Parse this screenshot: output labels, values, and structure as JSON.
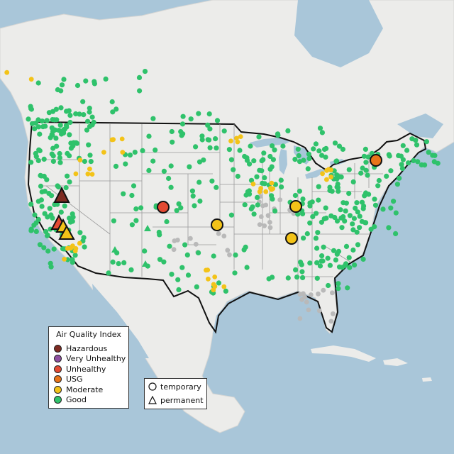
{
  "legend": {
    "title": "Air Quality Index",
    "categories": [
      {
        "label": "Hazardous",
        "color": "#7e2b22"
      },
      {
        "label": "Very Unhealthy",
        "color": "#8e4fa0"
      },
      {
        "label": "Unhealthy",
        "color": "#e34a33"
      },
      {
        "label": "USG",
        "color": "#e8741a"
      },
      {
        "label": "Moderate",
        "color": "#f3c318"
      },
      {
        "label": "Good",
        "color": "#2fc26b"
      }
    ]
  },
  "type_legend": {
    "temporary": "temporary",
    "permanent": "permanent"
  },
  "colors": {
    "water": "#a9c6d9",
    "land": "#ececea",
    "no_data": "#b9b9b9"
  }
}
